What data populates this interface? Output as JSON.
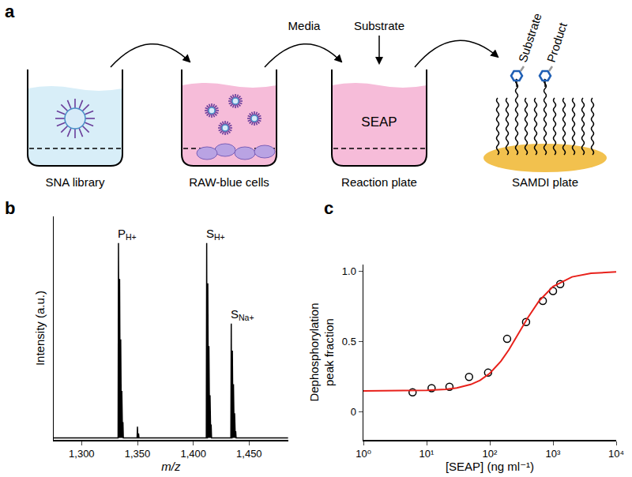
{
  "diagram": {
    "label": "a",
    "steps": [
      {
        "label": "SNA library"
      },
      {
        "label": "RAW-blue cells"
      },
      {
        "label": "Reaction plate",
        "content": "SEAP"
      },
      {
        "label": "SAMDI plate",
        "molecules": [
          "Substrate",
          "Product"
        ]
      }
    ],
    "arrows": [
      "Media",
      "Substrate"
    ]
  },
  "chart_data": [
    {
      "label": "b",
      "type": "line",
      "color": "#000000",
      "grid": false,
      "tick_labels": "x",
      "x_label": "m/z",
      "y_label": "Intensity (a.u.)",
      "x": [
        1275,
        1300,
        1332.65,
        1333,
        1333.35,
        1333.65,
        1334,
        1334.35,
        1334.65,
        1335,
        1335.35,
        1335.65,
        1336,
        1336.35,
        1336.65,
        1337,
        1337.35,
        1349.65,
        1350,
        1350.35,
        1350.65,
        1351,
        1351.35,
        1411.65,
        1412,
        1412.35,
        1412.65,
        1413,
        1413.35,
        1413.65,
        1414,
        1414.35,
        1414.65,
        1415,
        1415.35,
        1415.65,
        1416,
        1416.35,
        1433.65,
        1434,
        1434.35,
        1434.65,
        1435,
        1435.35,
        1435.65,
        1436,
        1436.35,
        1436.65,
        1437,
        1437.35,
        1437.65,
        1438,
        1438.35,
        1485
      ],
      "values": [
        0.01,
        0.01,
        0.01,
        0.88,
        0.01,
        0.01,
        0.72,
        0.01,
        0.01,
        0.45,
        0.01,
        0.01,
        0.22,
        0.01,
        0.01,
        0.08,
        0.01,
        0.01,
        0.06,
        0.01,
        0.01,
        0.03,
        0.01,
        0.01,
        0.88,
        0.01,
        0.01,
        0.7,
        0.01,
        0.01,
        0.42,
        0.01,
        0.01,
        0.2,
        0.01,
        0.01,
        0.07,
        0.01,
        0.01,
        0.52,
        0.01,
        0.01,
        0.4,
        0.01,
        0.01,
        0.25,
        0.01,
        0.01,
        0.12,
        0.01,
        0.01,
        0.04,
        0.01,
        0.01
      ],
      "xlim": [
        1275,
        1485
      ],
      "xticks": [
        {
          "value": 1300,
          "label": "1,300"
        },
        {
          "value": 1350,
          "label": "1,350"
        },
        {
          "value": 1400,
          "label": "1,400"
        },
        {
          "value": 1450,
          "label": "1,450"
        }
      ],
      "ylim": [
        0,
        1
      ],
      "yticks": [],
      "annotations": [
        {
          "text": "P",
          "subscript": "H+",
          "x": 1333,
          "y": 0.88
        },
        {
          "text": "S",
          "subscript": "H+",
          "x": 1412,
          "y": 0.88
        },
        {
          "text": "S",
          "subscript": "Na+",
          "x": 1434,
          "y": 0.52
        }
      ]
    },
    {
      "label": "c",
      "type": "scatter",
      "log": "x",
      "grid": false,
      "x_label": "[SEAP] (ng ml⁻¹)",
      "y_label": "Dephosphorylation\npeak fraction",
      "series": [
        {
          "type": "scatter",
          "marker": "open circle",
          "color": "#000000",
          "x": [
            6,
            12,
            23,
            47,
            94,
            188,
            375,
            690,
            1000,
            1300
          ],
          "values": [
            0.14,
            0.17,
            0.18,
            0.25,
            0.28,
            0.52,
            0.64,
            0.79,
            0.86,
            0.91
          ]
        },
        {
          "type": "line",
          "line_style": "solid",
          "color": "#e8211b",
          "x": [
            1,
            3,
            10,
            20,
            30,
            50,
            70,
            100,
            150,
            200,
            300,
            400,
            600,
            1000,
            2000,
            4000,
            10000
          ],
          "values": [
            0.15,
            0.1505,
            0.154,
            0.161,
            0.171,
            0.196,
            0.225,
            0.275,
            0.361,
            0.442,
            0.575,
            0.671,
            0.789,
            0.892,
            0.961,
            0.987,
            0.996
          ]
        }
      ],
      "xlim": [
        1,
        10000
      ],
      "xticks": [
        {
          "value": 1,
          "label": "10⁰"
        },
        {
          "value": 10,
          "label": "10¹"
        },
        {
          "value": 100,
          "label": "10²"
        },
        {
          "value": 1000,
          "label": "10³"
        },
        {
          "value": 10000,
          "label": "10⁴"
        }
      ],
      "ylim": [
        -0.2,
        1.05
      ],
      "yticks": [
        0,
        0.5,
        {
          "value": 1,
          "label": "1.0"
        }
      ]
    }
  ]
}
